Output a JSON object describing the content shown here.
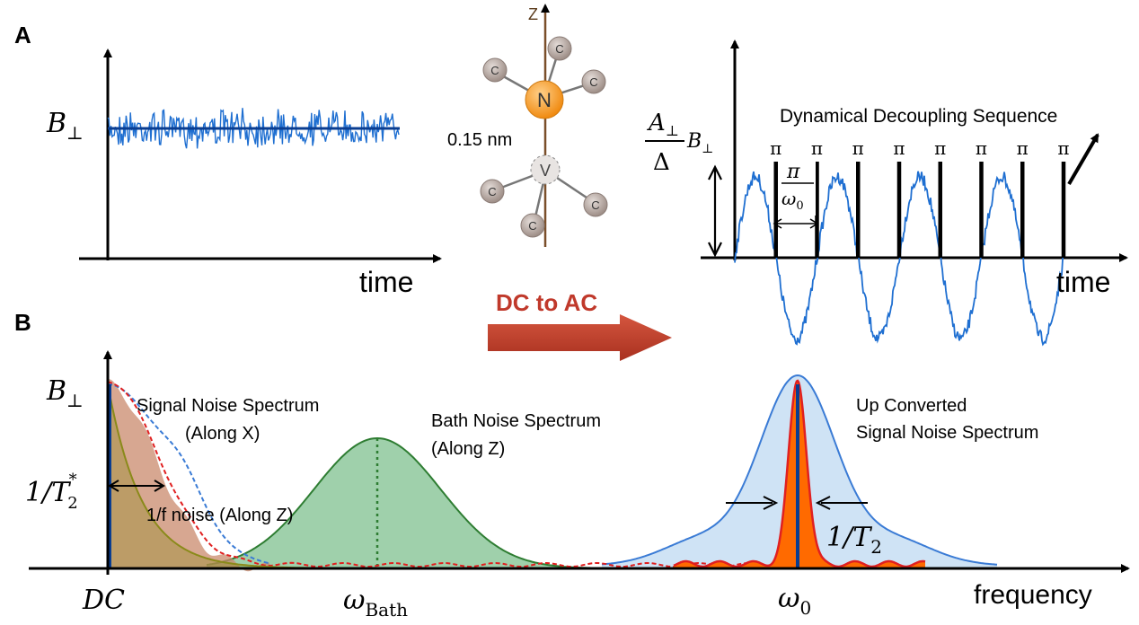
{
  "panel_a": {
    "label": "A",
    "left_plot": {
      "y_label": "B",
      "y_label_sub": "⊥",
      "x_label": "time"
    },
    "molecule": {
      "axis_label": "Z",
      "center_atom": "N",
      "vacancy": "V",
      "carbon": "C",
      "bond_length": "0.15 nm"
    },
    "right_plot": {
      "amp_num": "A",
      "amp_num_sub": "⊥",
      "amp_den": "Δ",
      "amp_suffix": "B",
      "amp_suffix_sub": "⊥",
      "sequence_label": "Dynamical Decoupling Sequence",
      "pulse_label": "π",
      "pulse_count": 8,
      "spacing_num": "π",
      "spacing_den": "ω",
      "spacing_den_sub": "0",
      "x_label": "time"
    }
  },
  "arrow": {
    "label": "DC to AC"
  },
  "panel_b": {
    "label": "B",
    "y_label": "B",
    "y_label_sub": "⊥",
    "linewidth_label": "1/T",
    "linewidth_sub": "2",
    "linewidth_sup": "*",
    "signal_label_line1": "Signal Noise Spectrum",
    "signal_label_line2": "(Along X)",
    "onef_label": "1/f noise (Along Z)",
    "bath_label_line1": "Bath Noise Spectrum",
    "bath_label_line2": "(Along Z)",
    "up_label_line1": "Up Converted",
    "up_label_line2": "Signal Noise Spectrum",
    "t2_label": "1/T",
    "t2_sub": "2",
    "tick_dc": "DC",
    "tick_bath": "ω",
    "tick_bath_sub": "Bath",
    "tick_w0": "ω",
    "tick_w0_sub": "0",
    "x_label": "frequency"
  },
  "colors": {
    "noise_blue": "#1f6fd1",
    "dark_blue": "#0a3d91",
    "nitrogen_orange": "#f59a1e",
    "carbon_gray": "#b8aaa4",
    "arrow_red": "#c0392b",
    "signal_fill": "#c98a6c",
    "onef_line": "#8a8a1a",
    "bath_fill": "#7fc08f",
    "bath_line": "#2e7d32",
    "up_fill": "#cfe3f5",
    "up_line": "#3a7bd5",
    "peak_orange": "#ff6a00",
    "peak_red": "#e02020"
  }
}
